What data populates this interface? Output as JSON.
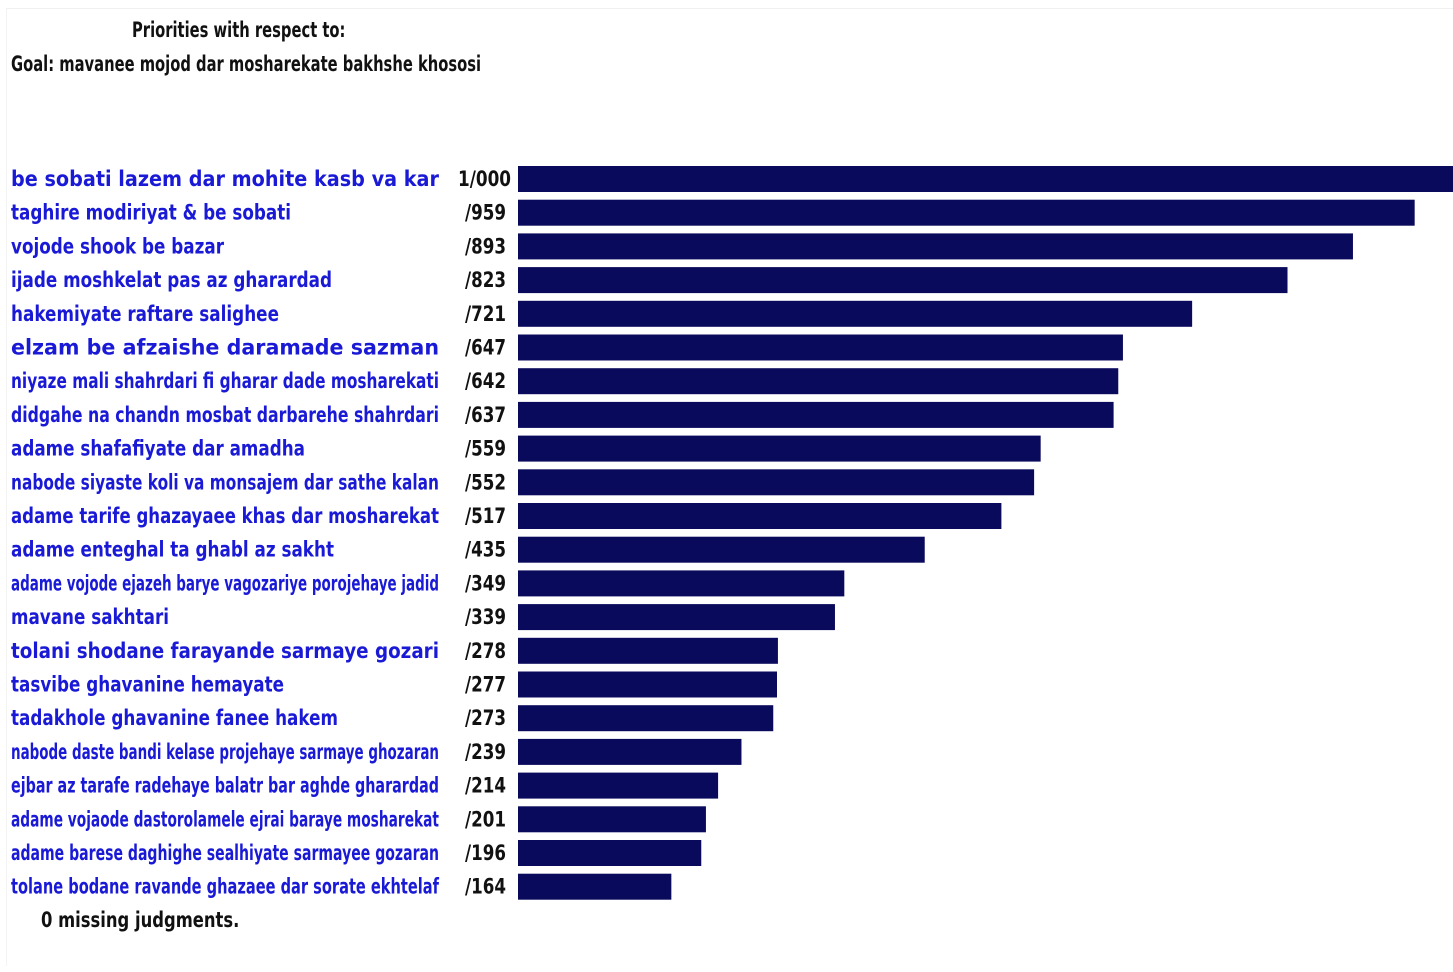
{
  "header": {
    "title": "Priorities with respect to:",
    "goal": "Goal: mavanee mojod dar mosharekate bakhshe khososi"
  },
  "footer": {
    "note": "0  missing judgments."
  },
  "colors": {
    "bar": "#0a0a5c",
    "label": "#1a1ad6",
    "value": "#111111"
  },
  "chart_data": {
    "type": "bar",
    "orientation": "horizontal",
    "categories": [
      "be sobati lazem dar mohite kasb va kar",
      "taghire modiriyat & be sobati",
      "vojode shook be bazar",
      "ijade moshkelat pas az gharardad",
      "hakemiyate raftare salighee",
      "elzam be afzaishe daramade sazman",
      "niyaze mali shahrdari fi gharar dade mosharekati",
      "didgahe na chandn mosbat darbarehe shahrdari",
      "adame shafafiyate dar amadha",
      "nabode siyaste koli va monsajem dar sathe kalan",
      "adame tarife ghazayaee khas dar mosharekat",
      "adame enteghal ta ghabl az sakht",
      "adame vojode ejazeh barye vagozariye porojehaye jadid",
      "mavane sakhtari",
      "tolani shodane farayande sarmaye gozari",
      "tasvibe ghavanine hemayate",
      "tadakhole ghavanine fanee hakem",
      "nabode daste bandi kelase projehaye sarmaye ghozaran",
      "ejbar az tarafe radehaye balatr bar aghde gharardad",
      "adame vojaode dastorolamele ejrai baraye mosharekat",
      "adame barese daghighe sealhiyate sarmayee gozaran",
      "tolane bodane ravande ghazaee dar sorate ekhtelaf"
    ],
    "values": [
      1.0,
      0.959,
      0.893,
      0.823,
      0.721,
      0.647,
      0.642,
      0.637,
      0.559,
      0.552,
      0.517,
      0.435,
      0.349,
      0.339,
      0.278,
      0.277,
      0.273,
      0.239,
      0.214,
      0.201,
      0.196,
      0.164
    ],
    "value_labels": [
      "1/000",
      "/959",
      "/893",
      "/823",
      "/721",
      "/647",
      "/642",
      "/637",
      "/559",
      "/552",
      "/517",
      "/435",
      "/349",
      "/339",
      "/278",
      "/277",
      "/273",
      "/239",
      "/214",
      "/201",
      "/196",
      "/164"
    ],
    "xlim": [
      0,
      1
    ],
    "grid": false,
    "legend": "none"
  }
}
